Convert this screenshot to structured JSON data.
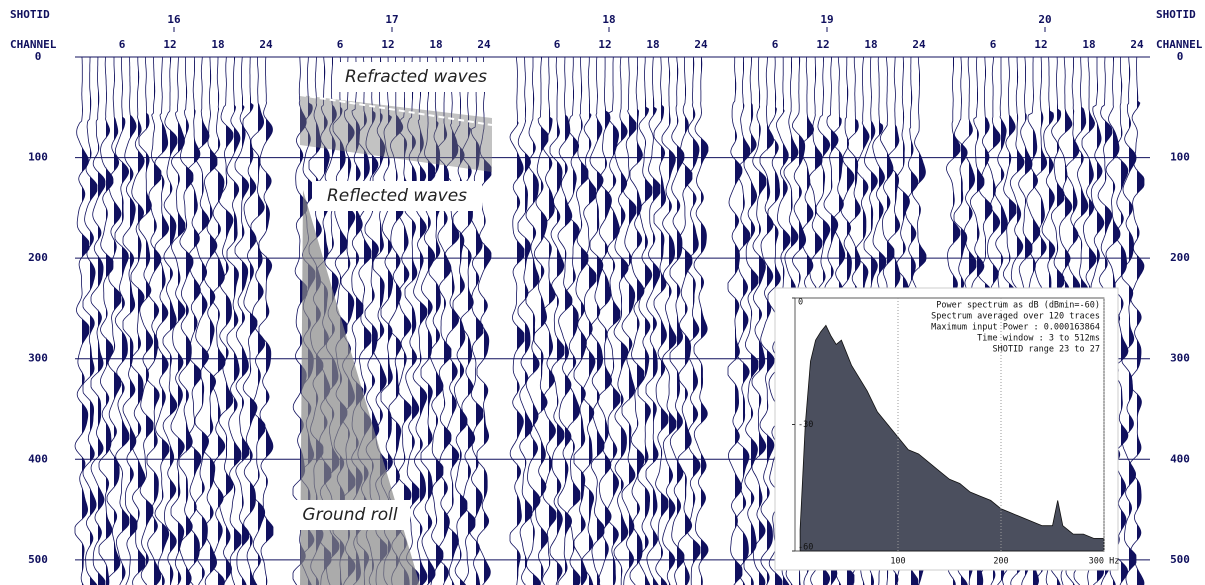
{
  "record": {
    "shotid_label": "SHOTID",
    "channel_label": "CHANNEL",
    "shots": [
      16,
      17,
      18,
      19,
      20
    ],
    "channels": [
      6,
      12,
      18,
      24
    ],
    "ylim": [
      0,
      520
    ],
    "time_ticks": [
      0,
      100,
      200,
      300,
      400,
      500
    ]
  },
  "annotations": {
    "refracted": "Refracted waves",
    "reflected": "Reflected waves",
    "ground_roll": "Ground roll"
  },
  "chart_data": {
    "type": "area",
    "notes": [
      "Power spectrum as dB (dBmin=-60)",
      "Spectrum averaged over 120 traces",
      "Maximum input Power : 0.000163864",
      "Time window : 3 to 512ms",
      "SHOTID range 23 to 27"
    ],
    "x": [
      5,
      10,
      15,
      20,
      25,
      30,
      35,
      40,
      45,
      50,
      55,
      60,
      70,
      80,
      90,
      100,
      110,
      120,
      130,
      140,
      150,
      160,
      170,
      180,
      190,
      200,
      210,
      220,
      230,
      240,
      250,
      255,
      260,
      270,
      280,
      290,
      300
    ],
    "values": [
      -55,
      -30,
      -15,
      -10,
      -8,
      -6.5,
      -9,
      -11,
      -10,
      -13,
      -16,
      -18,
      -22,
      -27,
      -30,
      -33,
      -36,
      -37,
      -39,
      -41,
      -43,
      -44,
      -46,
      -47,
      -48,
      -50,
      -51,
      -52,
      -53,
      -54,
      -54,
      -48,
      -54,
      -56,
      -56,
      -57,
      -57
    ],
    "color": "#4b4f5e",
    "xlim": [
      0,
      300
    ],
    "xticks": [
      100,
      200,
      {
        "value": 300,
        "label": "300 Hz"
      }
    ],
    "ylim": [
      -60,
      0
    ],
    "yticks": [
      0,
      -30,
      -60
    ],
    "grid": true
  }
}
